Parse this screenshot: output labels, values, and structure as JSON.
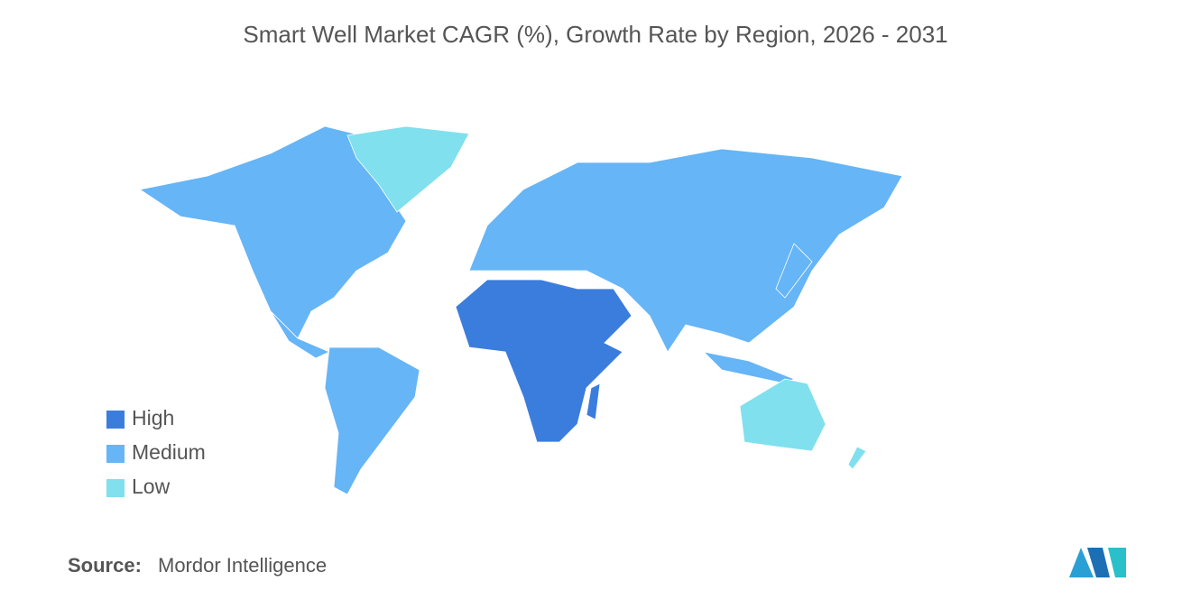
{
  "title": "Smart Well Market CAGR (%), Growth Rate by Region, 2026 - 2031",
  "legend": [
    {
      "label": "High",
      "color": "#3b7ddd"
    },
    {
      "label": "Medium",
      "color": "#66b5f6"
    },
    {
      "label": "Low",
      "color": "#80e0ee"
    }
  ],
  "source": {
    "label": "Source:",
    "value": "Mordor Intelligence"
  }
}
